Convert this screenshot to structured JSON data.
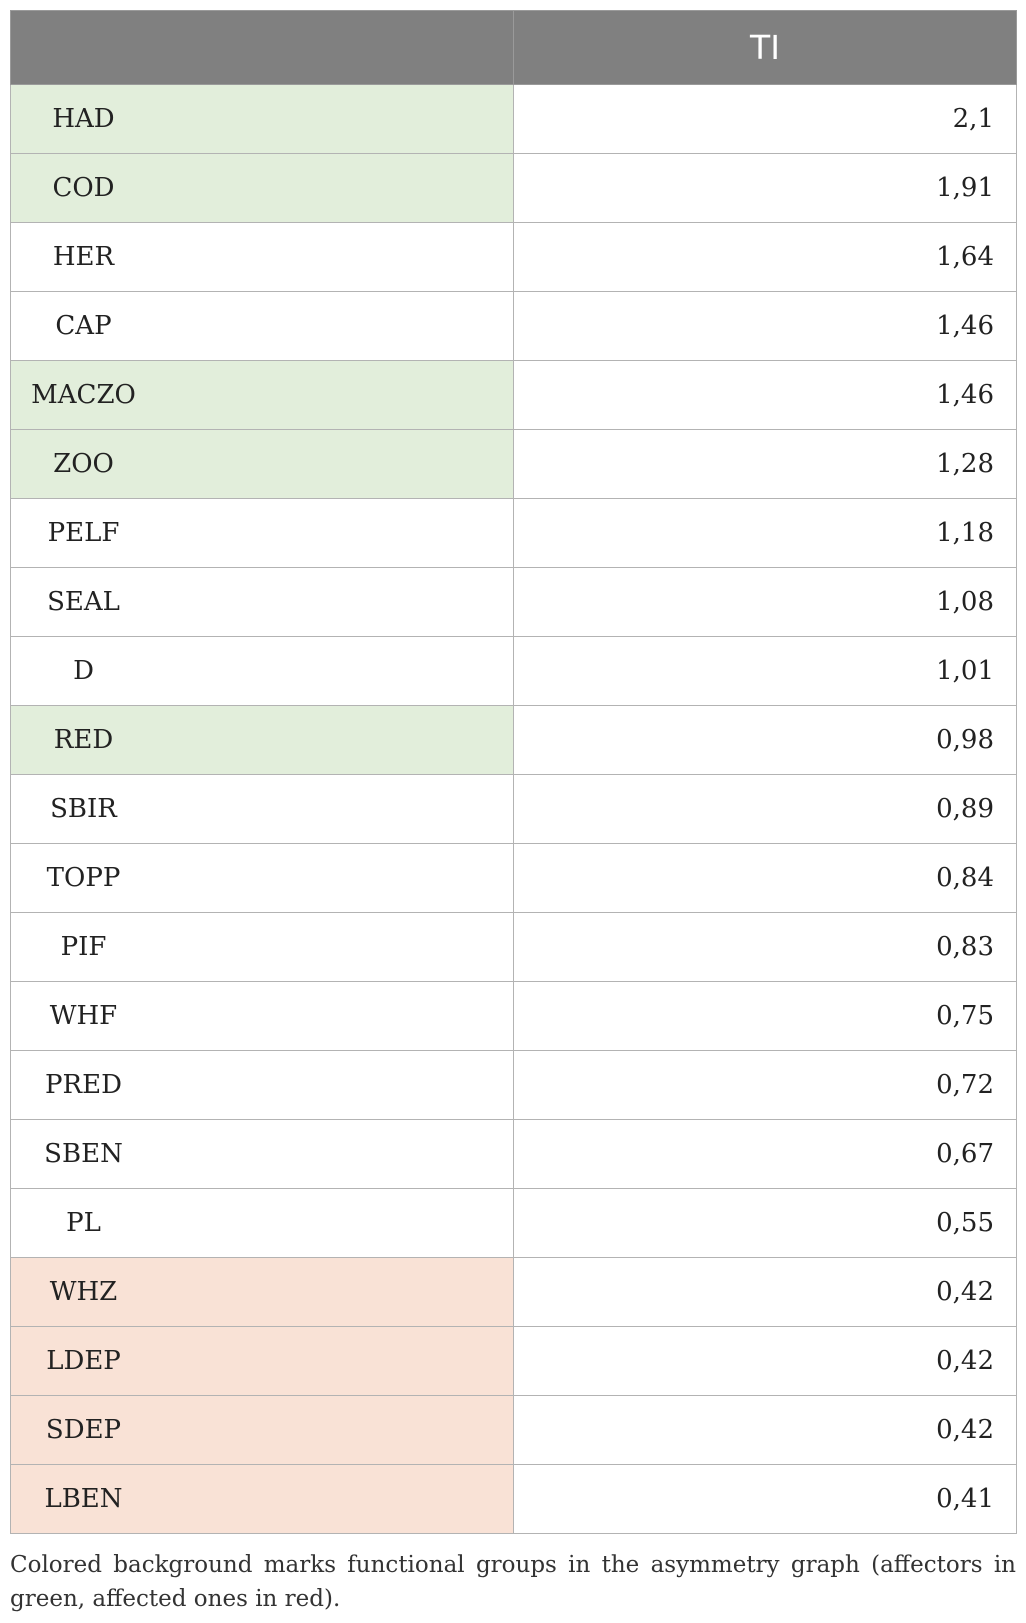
{
  "table": {
    "headers": {
      "name": "",
      "ti": "TI"
    },
    "colors": {
      "affector": "#e2eedb",
      "affected": "#f9e2d6",
      "none": "#ffffff"
    },
    "rows": [
      {
        "name": "HAD",
        "ti": "2,1",
        "group": "affector"
      },
      {
        "name": "COD",
        "ti": "1,91",
        "group": "affector"
      },
      {
        "name": "HER",
        "ti": "1,64",
        "group": "none"
      },
      {
        "name": "CAP",
        "ti": "1,46",
        "group": "none"
      },
      {
        "name": "MACZO",
        "ti": "1,46",
        "group": "affector"
      },
      {
        "name": "ZOO",
        "ti": "1,28",
        "group": "affector"
      },
      {
        "name": "PELF",
        "ti": "1,18",
        "group": "none"
      },
      {
        "name": "SEAL",
        "ti": "1,08",
        "group": "none"
      },
      {
        "name": "D",
        "ti": "1,01",
        "group": "none"
      },
      {
        "name": "RED",
        "ti": "0,98",
        "group": "affector"
      },
      {
        "name": "SBIR",
        "ti": "0,89",
        "group": "none"
      },
      {
        "name": "TOPP",
        "ti": "0,84",
        "group": "none"
      },
      {
        "name": "PIF",
        "ti": "0,83",
        "group": "none"
      },
      {
        "name": "WHF",
        "ti": "0,75",
        "group": "none"
      },
      {
        "name": "PRED",
        "ti": "0,72",
        "group": "none"
      },
      {
        "name": "SBEN",
        "ti": "0,67",
        "group": "none"
      },
      {
        "name": "PL",
        "ti": "0,55",
        "group": "none"
      },
      {
        "name": "WHZ",
        "ti": "0,42",
        "group": "affected"
      },
      {
        "name": "LDEP",
        "ti": "0,42",
        "group": "affected"
      },
      {
        "name": "SDEP",
        "ti": "0,42",
        "group": "affected"
      },
      {
        "name": "LBEN",
        "ti": "0,41",
        "group": "affected"
      }
    ]
  },
  "footnote": "Colored background marks functional groups in the asymmetry graph (affectors in green, affected ones in red)."
}
